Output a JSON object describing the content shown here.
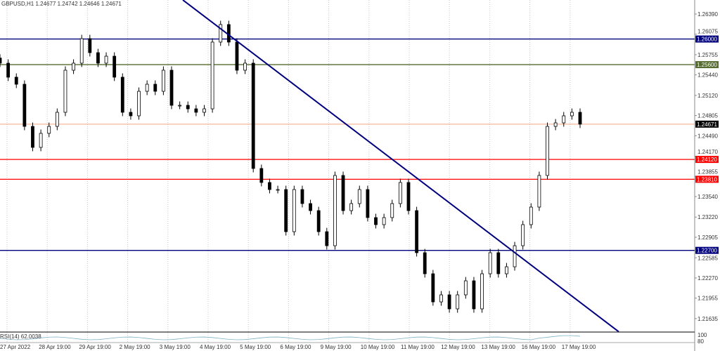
{
  "header": {
    "title": "GBPUSD,H1",
    "ohlc": "1.24677 1.24742 1.24646 1.24671"
  },
  "chart_data": {
    "type": "candlestick",
    "symbol": "GBPUSD",
    "timeframe": "H1",
    "ylim": [
      1.2118,
      1.2661
    ],
    "y_ticks": [
      "1.26390",
      "1.26075",
      "1.25755",
      "1.25440",
      "1.25120",
      "1.24805",
      "1.24490",
      "1.24170",
      "1.23855",
      "1.23540",
      "1.23220",
      "1.22905",
      "1.22585",
      "1.22270",
      "1.21955",
      "1.21635"
    ],
    "x_ticks": [
      "27 Apr 2022",
      "28 Apr 19:00",
      "29 Apr 19:00",
      "2 May 19:00",
      "3 May 19:00",
      "4 May 19:00",
      "5 May 19:00",
      "6 May 19:00",
      "9 May 19:00",
      "10 May 19:00",
      "11 May 19:00",
      "12 May 19:00",
      "13 May 19:00",
      "16 May 19:00",
      "17 May 19:00"
    ],
    "grid": "vertical dashed",
    "approx_closes": [
      1.25623,
      1.25404,
      1.25294,
      1.24636,
      1.24308,
      1.24527,
      1.24636,
      1.24856,
      1.25513,
      1.25623,
      1.26006,
      1.25787,
      1.25623,
      1.25732,
      1.25404,
      1.24856,
      1.24801,
      1.25184,
      1.25294,
      1.25184,
      1.25513,
      1.24965,
      1.24965,
      1.2491,
      1.24856,
      1.2491,
      1.25952,
      1.26226,
      1.25952,
      1.25513,
      1.25623,
      1.23979,
      1.2376,
      1.2365,
      1.2365,
      1.22992,
      1.2365,
      1.23431,
      1.23321,
      1.22992,
      1.22773,
      1.2387,
      1.23321,
      1.23431,
      1.2365,
      1.23212,
      1.23102,
      1.23212,
      1.23431,
      1.2376,
      1.23321,
      1.22664,
      1.22335,
      1.21896,
      1.22006,
      1.21787,
      1.22006,
      1.22225,
      1.21787,
      1.22335,
      1.22664,
      1.22335,
      1.22444,
      1.22773,
      1.23102,
      1.23376,
      1.2387,
      1.24636,
      1.24691,
      1.24801,
      1.24856,
      1.24671
    ],
    "levels": [
      {
        "price": 1.26,
        "label": "1.26000",
        "color": "#00007f"
      },
      {
        "price": 1.256,
        "label": "1.25600",
        "color": "#556b2f"
      },
      {
        "price": 1.2412,
        "label": "1.24120",
        "color": "#ff0000"
      },
      {
        "price": 1.2381,
        "label": "1.23810",
        "color": "#ff0000"
      },
      {
        "price": 1.227,
        "label": "1.22700",
        "color": "#00007f"
      }
    ],
    "current_price": {
      "price": 1.24671,
      "label": "1.24671",
      "line_color": "#f4a582",
      "tag_color": "#000000"
    },
    "trendline": {
      "from_price": 1.2661,
      "to_price": 1.2143,
      "color": "#00007f"
    },
    "rsi": {
      "label": "RSI(14) 62.0038",
      "axis_labels": [
        "100",
        "80"
      ],
      "color": "#7fb2c8"
    }
  }
}
